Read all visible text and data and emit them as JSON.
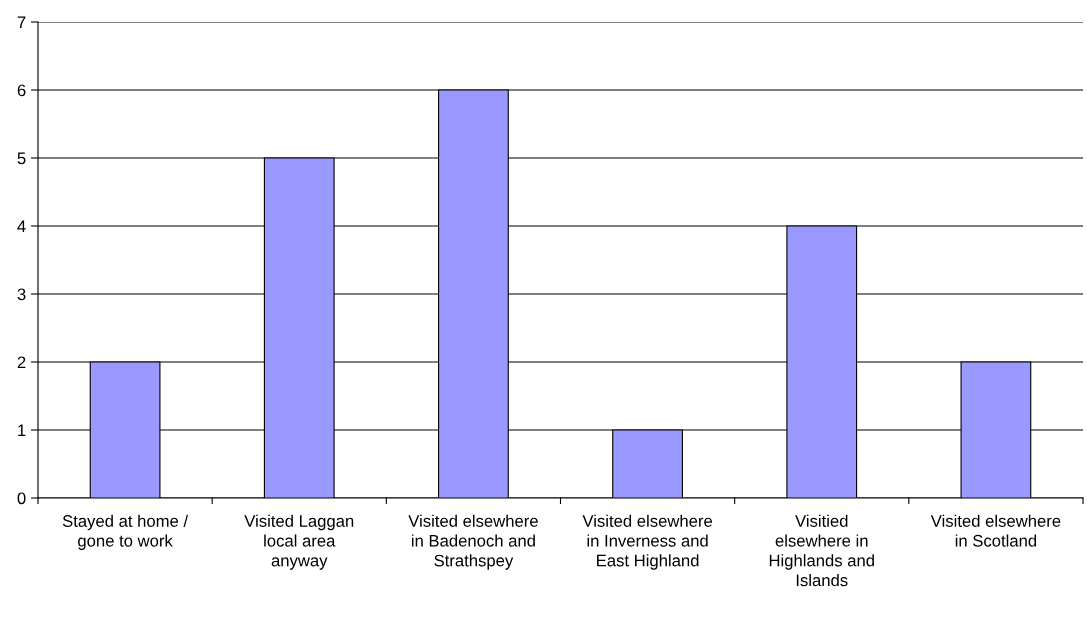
{
  "chart_data": {
    "type": "bar",
    "categories": [
      "Stayed at home /\ngone to work",
      "Visited Laggan\nlocal area\nanyway",
      "Visited elsewhere\nin Badenoch and\nStrathspey",
      "Visited elsewhere\nin Inverness and\nEast Highland",
      "Visitied\nelsewhere in\nHighlands and\nIslands",
      "Visited elsewhere\nin Scotland"
    ],
    "values": [
      2,
      5,
      6,
      1,
      4,
      2
    ],
    "color": "#9999ff",
    "ylim": [
      0,
      7
    ],
    "yticks": [
      0,
      1,
      2,
      3,
      4,
      5,
      6,
      7
    ],
    "grid": "y"
  }
}
